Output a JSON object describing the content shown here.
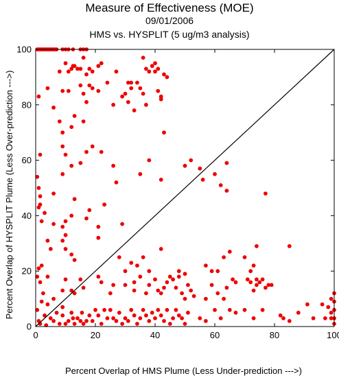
{
  "chart_data": {
    "type": "scatter",
    "title": "Measure of Effectiveness (MOE)",
    "date": "09/01/2006",
    "subtitle": "HMS vs. HYSPLIT  (5 ug/m3 analysis)",
    "xlabel": "Percent Overlap of HMS Plume (Less Under-prediction --->)",
    "ylabel": "Percent Overlap of HYSPLIT Plume (Less Over-prediction --->)",
    "xlim": [
      0,
      100
    ],
    "ylim": [
      0,
      100
    ],
    "xticks": [
      0,
      20,
      40,
      60,
      80,
      100
    ],
    "yticks": [
      0,
      20,
      40,
      60,
      80,
      100
    ],
    "xtick_labels": [
      "0",
      "20",
      "40",
      "60",
      "80",
      "100"
    ],
    "ytick_labels": [
      "0",
      "20",
      "40",
      "60",
      "80",
      "100"
    ],
    "reference_line": {
      "from": [
        0,
        0
      ],
      "to": [
        100,
        100
      ],
      "color": "#000000"
    },
    "grid": false,
    "marker_color": "#ee0000",
    "points": [
      [
        0.5,
        100
      ],
      [
        1,
        100
      ],
      [
        1.5,
        100
      ],
      [
        2,
        100
      ],
      [
        2.5,
        100
      ],
      [
        3,
        100
      ],
      [
        3.5,
        100
      ],
      [
        4,
        100
      ],
      [
        4.5,
        100
      ],
      [
        5,
        100
      ],
      [
        5.5,
        100
      ],
      [
        6,
        100
      ],
      [
        6.5,
        100
      ],
      [
        7,
        100
      ],
      [
        9,
        100
      ],
      [
        10,
        100
      ],
      [
        11,
        100
      ],
      [
        12.5,
        100
      ],
      [
        15,
        100
      ],
      [
        16,
        100
      ],
      [
        17,
        100
      ],
      [
        8,
        92
      ],
      [
        10,
        95
      ],
      [
        11,
        92
      ],
      [
        12,
        93
      ],
      [
        12.5,
        94
      ],
      [
        13,
        94
      ],
      [
        14,
        93
      ],
      [
        15,
        93
      ],
      [
        16,
        97
      ],
      [
        17,
        91
      ],
      [
        18,
        93
      ],
      [
        19,
        92
      ],
      [
        21,
        94
      ],
      [
        22,
        95
      ],
      [
        24,
        88
      ],
      [
        27,
        92
      ],
      [
        30,
        84
      ],
      [
        31,
        88
      ],
      [
        32,
        88
      ],
      [
        34,
        88
      ],
      [
        35,
        86
      ],
      [
        36,
        97
      ],
      [
        37,
        93
      ],
      [
        38,
        92
      ],
      [
        39,
        94
      ],
      [
        40,
        95
      ],
      [
        40,
        92
      ],
      [
        41,
        93
      ],
      [
        41,
        85
      ],
      [
        42,
        82
      ],
      [
        43,
        91
      ],
      [
        44,
        90
      ],
      [
        1,
        83
      ],
      [
        4,
        86
      ],
      [
        9,
        85
      ],
      [
        11,
        85
      ],
      [
        15,
        87
      ],
      [
        16,
        84
      ],
      [
        17,
        81
      ],
      [
        18,
        87
      ],
      [
        19,
        86
      ],
      [
        21,
        85
      ],
      [
        26,
        80
      ],
      [
        29,
        83
      ],
      [
        31,
        81
      ],
      [
        32,
        86
      ],
      [
        33,
        78
      ],
      [
        36,
        84
      ],
      [
        37,
        80
      ],
      [
        42,
        83
      ],
      [
        6,
        79
      ],
      [
        8,
        74
      ],
      [
        9,
        70
      ],
      [
        12,
        72
      ],
      [
        13,
        76
      ],
      [
        16,
        74
      ],
      [
        43,
        70
      ],
      [
        0.5,
        54
      ],
      [
        1,
        50
      ],
      [
        1.5,
        62
      ],
      [
        6,
        48
      ],
      [
        9,
        65
      ],
      [
        9,
        55
      ],
      [
        10,
        62
      ],
      [
        12,
        58
      ],
      [
        13,
        46
      ],
      [
        15,
        59
      ],
      [
        17,
        63
      ],
      [
        19,
        65
      ],
      [
        22,
        63
      ],
      [
        26,
        58
      ],
      [
        27,
        52
      ],
      [
        35,
        55
      ],
      [
        38,
        60
      ],
      [
        42,
        53
      ],
      [
        50,
        58
      ],
      [
        52,
        60
      ],
      [
        55,
        57
      ],
      [
        56,
        53
      ],
      [
        60,
        55
      ],
      [
        62,
        51
      ],
      [
        64,
        59
      ],
      [
        64,
        49
      ],
      [
        77,
        48
      ],
      [
        1,
        43
      ],
      [
        1.5,
        47
      ],
      [
        1.5,
        44
      ],
      [
        2,
        38
      ],
      [
        3,
        41
      ],
      [
        6,
        37
      ],
      [
        9,
        36
      ],
      [
        10,
        38
      ],
      [
        10,
        33
      ],
      [
        12,
        40
      ],
      [
        17,
        39
      ],
      [
        18,
        42
      ],
      [
        21,
        36
      ],
      [
        23,
        44
      ],
      [
        29,
        37
      ],
      [
        4,
        31
      ],
      [
        5,
        28
      ],
      [
        9,
        31
      ],
      [
        10,
        28
      ],
      [
        12,
        26
      ],
      [
        13,
        24
      ],
      [
        21,
        32
      ],
      [
        28,
        25
      ],
      [
        30,
        20
      ],
      [
        32,
        23
      ],
      [
        34,
        22
      ],
      [
        36,
        25
      ],
      [
        38,
        20
      ],
      [
        42,
        28
      ],
      [
        45,
        18
      ],
      [
        48,
        20
      ],
      [
        50,
        19
      ],
      [
        57,
        22
      ],
      [
        59,
        20
      ],
      [
        61,
        20
      ],
      [
        63,
        25
      ],
      [
        65,
        27
      ],
      [
        70,
        25
      ],
      [
        72,
        20
      ],
      [
        73,
        22
      ],
      [
        74,
        29
      ],
      [
        74,
        15
      ],
      [
        76,
        17
      ],
      [
        79,
        15
      ],
      [
        85,
        29
      ],
      [
        0.5,
        18
      ],
      [
        1,
        21
      ],
      [
        1.5,
        16
      ],
      [
        2,
        22
      ],
      [
        2.5,
        12
      ],
      [
        4,
        18
      ],
      [
        6,
        10
      ],
      [
        9,
        13
      ],
      [
        10,
        17
      ],
      [
        12,
        13
      ],
      [
        13,
        12
      ],
      [
        15,
        17
      ],
      [
        16,
        14
      ],
      [
        21,
        18
      ],
      [
        22,
        16
      ],
      [
        25,
        12
      ],
      [
        26,
        15
      ],
      [
        30,
        15
      ],
      [
        33,
        16
      ],
      [
        33,
        13
      ],
      [
        35,
        18
      ],
      [
        37,
        12
      ],
      [
        38,
        15
      ],
      [
        40,
        17
      ],
      [
        41,
        13
      ],
      [
        42,
        12
      ],
      [
        43,
        14
      ],
      [
        44,
        16
      ],
      [
        46,
        17
      ],
      [
        47,
        14
      ],
      [
        48,
        18
      ],
      [
        49,
        12
      ],
      [
        50,
        10
      ],
      [
        51,
        15
      ],
      [
        52,
        13
      ],
      [
        53,
        11
      ],
      [
        57,
        10
      ],
      [
        59,
        15
      ],
      [
        61,
        12
      ],
      [
        63,
        10
      ],
      [
        64,
        14
      ],
      [
        66,
        17
      ],
      [
        67,
        16
      ],
      [
        71,
        17
      ],
      [
        72,
        16
      ],
      [
        73,
        13
      ],
      [
        74,
        17
      ],
      [
        75,
        16
      ],
      [
        77,
        14
      ],
      [
        78,
        15
      ],
      [
        0.5,
        6
      ],
      [
        1,
        2
      ],
      [
        1.5,
        1
      ],
      [
        2,
        9
      ],
      [
        3,
        4
      ],
      [
        3.5,
        0.5
      ],
      [
        4,
        8
      ],
      [
        5,
        3
      ],
      [
        6,
        2
      ],
      [
        7,
        5
      ],
      [
        8,
        1
      ],
      [
        9,
        7
      ],
      [
        9,
        4
      ],
      [
        10,
        1
      ],
      [
        11,
        2
      ],
      [
        12,
        5
      ],
      [
        12.5,
        3
      ],
      [
        13,
        1
      ],
      [
        14,
        3
      ],
      [
        15,
        2
      ],
      [
        15.5,
        5
      ],
      [
        16,
        1
      ],
      [
        17,
        2
      ],
      [
        18,
        4
      ],
      [
        19,
        2
      ],
      [
        20,
        6
      ],
      [
        21,
        4
      ],
      [
        22,
        1
      ],
      [
        23,
        6
      ],
      [
        24,
        3
      ],
      [
        25,
        6
      ],
      [
        26,
        3
      ],
      [
        27,
        2
      ],
      [
        28,
        5
      ],
      [
        29,
        1
      ],
      [
        30,
        3
      ],
      [
        31,
        2
      ],
      [
        32,
        6
      ],
      [
        33,
        4
      ],
      [
        34,
        1
      ],
      [
        35,
        3
      ],
      [
        36,
        6
      ],
      [
        37,
        4
      ],
      [
        38,
        2
      ],
      [
        39,
        5
      ],
      [
        40,
        3
      ],
      [
        41,
        6
      ],
      [
        42,
        4
      ],
      [
        43,
        2
      ],
      [
        44,
        6
      ],
      [
        45,
        1
      ],
      [
        46,
        3
      ],
      [
        47,
        6
      ],
      [
        48,
        4
      ],
      [
        49,
        3
      ],
      [
        50,
        1
      ],
      [
        51,
        5
      ],
      [
        55,
        3
      ],
      [
        57,
        2
      ],
      [
        60,
        6
      ],
      [
        62,
        3
      ],
      [
        65,
        6
      ],
      [
        67,
        5
      ],
      [
        70,
        6
      ],
      [
        73,
        3
      ],
      [
        76,
        6
      ],
      [
        82,
        4
      ],
      [
        83,
        3
      ],
      [
        85,
        2
      ],
      [
        88,
        5
      ],
      [
        91,
        8
      ],
      [
        93,
        3
      ],
      [
        96,
        8
      ],
      [
        97,
        3
      ],
      [
        98,
        7
      ],
      [
        99,
        10
      ],
      [
        99,
        5
      ],
      [
        99,
        3
      ],
      [
        100,
        12
      ],
      [
        100,
        9
      ],
      [
        100,
        6
      ],
      [
        100,
        3
      ],
      [
        100,
        1
      ]
    ]
  }
}
